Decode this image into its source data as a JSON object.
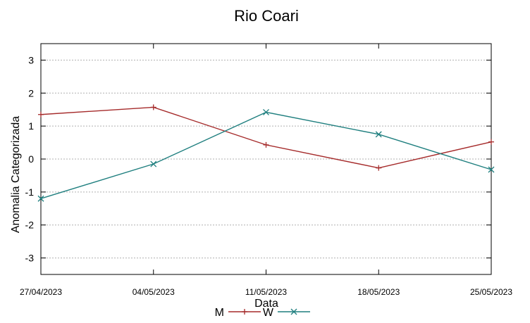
{
  "chart_data": {
    "type": "line",
    "title": "Rio Coari",
    "xlabel": "Data",
    "ylabel": "Anomalia Categorizada",
    "categories": [
      "27/04/2023",
      "04/05/2023",
      "11/05/2023",
      "18/05/2023",
      "25/05/2023"
    ],
    "ylim": [
      -3.5,
      3.5
    ],
    "yticks": [
      "3",
      "2",
      "1",
      "0",
      "-1",
      "-2",
      "-3"
    ],
    "grid": true,
    "legend_position": "bottom",
    "series": [
      {
        "name": "M",
        "values": [
          1.35,
          1.57,
          0.43,
          -0.27,
          0.52
        ],
        "color": "#a52a2a",
        "marker": "plus"
      },
      {
        "name": "W",
        "values": [
          -1.2,
          -0.15,
          1.42,
          0.75,
          -0.32
        ],
        "color": "#1f7f7f",
        "marker": "x"
      }
    ]
  }
}
